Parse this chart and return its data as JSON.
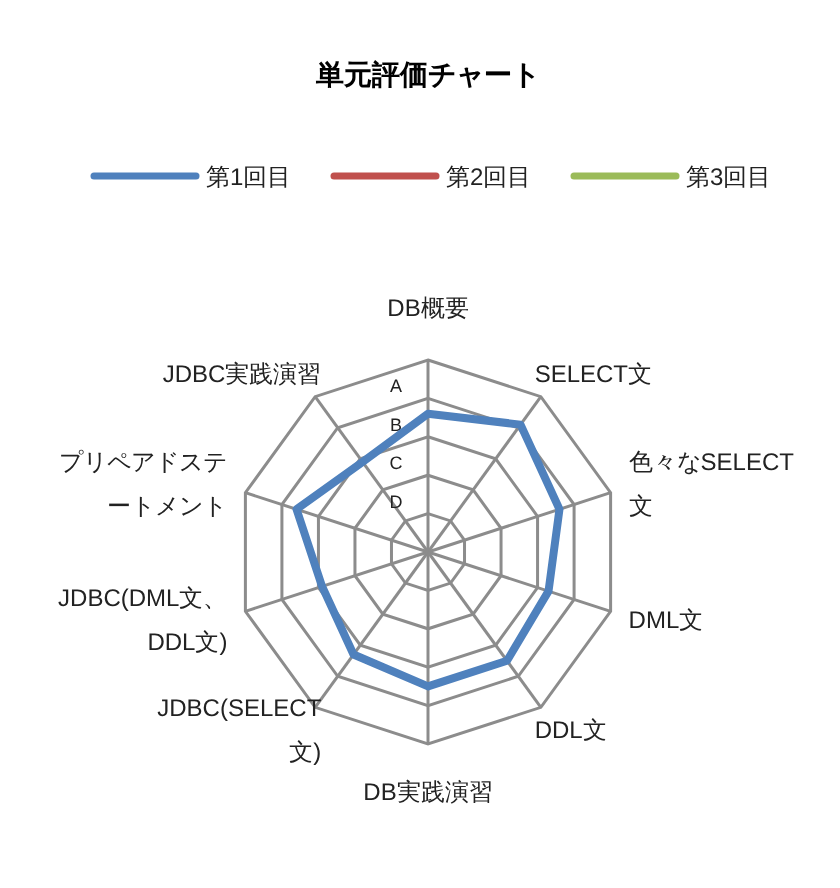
{
  "chart_data": {
    "type": "radar",
    "title": "単元評価チャート",
    "categories": [
      "DB概要",
      "SELECT文",
      "色々なSELECT文",
      "DML文",
      "DDL文",
      "DB実践演習",
      "JDBC(SELECT文)",
      "JDBC(DML文、DDL文)",
      "プリペアドステートメント",
      "JDBC実践演習"
    ],
    "series": [
      {
        "name": "第1回目",
        "color": "#4f81bd",
        "values": [
          3.6,
          4.1,
          3.6,
          3.3,
          3.5,
          3.5,
          3.3,
          2.9,
          3.6,
          2.9
        ]
      },
      {
        "name": "第2回目",
        "color": "#c0504d",
        "values": [
          null,
          null,
          null,
          null,
          null,
          null,
          null,
          null,
          null,
          null
        ]
      },
      {
        "name": "第3回目",
        "color": "#9bbb59",
        "values": [
          null,
          null,
          null,
          null,
          null,
          null,
          null,
          null,
          null,
          null
        ]
      }
    ],
    "ylim": [
      0,
      5
    ],
    "yticks": [
      {
        "value": 1,
        "label": "D"
      },
      {
        "value": 2,
        "label": "C"
      },
      {
        "value": 3,
        "label": "B"
      },
      {
        "value": 4,
        "label": "A"
      }
    ],
    "grid": true,
    "legend": "top",
    "marker": "none",
    "line_style": "solid"
  }
}
